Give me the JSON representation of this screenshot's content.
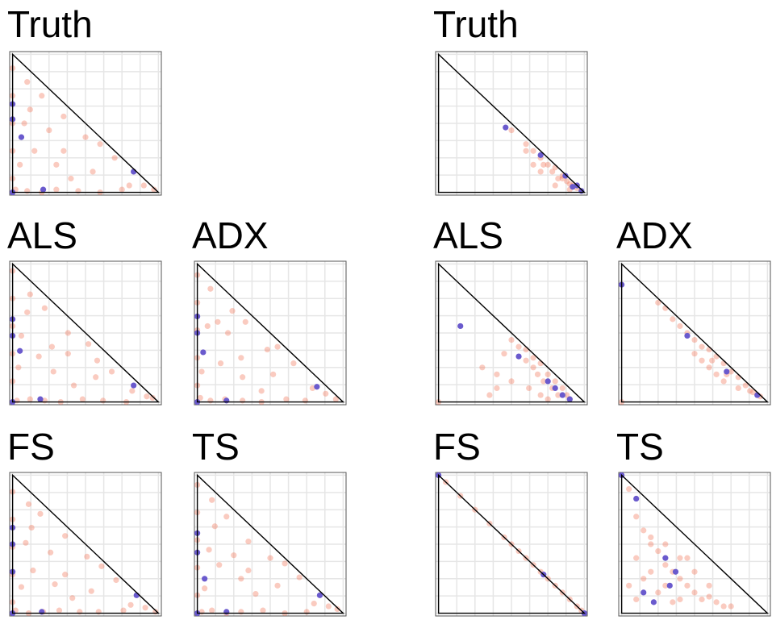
{
  "chart_data": [
    {
      "type": "scatter",
      "title": "Truth",
      "xlim": [
        -0.02,
        1.02
      ],
      "ylim": [
        -0.02,
        1.02
      ],
      "xticks": [
        0,
        0.125,
        0.25,
        0.375,
        0.5,
        0.625,
        0.75,
        0.875,
        1
      ],
      "yticks": [
        0,
        0.125,
        0.25,
        0.375,
        0.5,
        0.625,
        0.75,
        0.875,
        1
      ],
      "grid": true,
      "series": [
        {
          "color": "#f26b4a",
          "opacity": 0.35,
          "x": [
            0,
            0,
            0,
            0,
            0,
            0.02,
            0.1,
            0.2,
            0.3,
            0.45,
            0.6,
            0.75,
            0.9,
            0.97,
            0.1,
            0.2,
            0.35,
            0.5,
            0.15,
            0.3,
            0.08,
            0.25,
            0.55,
            0.4,
            0.7,
            0.05,
            0.8,
            0.12,
            0.6,
            0.35
          ],
          "y": [
            0.1,
            0.3,
            0.5,
            0.7,
            0.9,
            0.02,
            0.01,
            0,
            0.02,
            0.01,
            0,
            0.02,
            0.05,
            0.02,
            0.8,
            0.7,
            0.55,
            0.4,
            0.3,
            0.2,
            0.5,
            0.45,
            0.15,
            0.1,
            0.25,
            0.2,
            0.05,
            0.6,
            0.35,
            0.3
          ]
        },
        {
          "color": "#6a5acd",
          "opacity": 1,
          "x": [
            0,
            0,
            0.06,
            0.83,
            0.21,
            0
          ],
          "y": [
            0.64,
            0.53,
            0.4,
            0.15,
            0.02,
            0
          ]
        }
      ]
    },
    {
      "type": "scatter",
      "title": "ALS",
      "xlim": [
        -0.02,
        1.02
      ],
      "ylim": [
        -0.02,
        1.02
      ],
      "xticks": [
        0,
        0.125,
        0.25,
        0.375,
        0.5,
        0.625,
        0.75,
        0.875,
        1
      ],
      "yticks": [
        0,
        0.125,
        0.25,
        0.375,
        0.5,
        0.625,
        0.75,
        0.875,
        1
      ],
      "grid": true,
      "series": [
        {
          "color": "#f26b4a",
          "opacity": 0.35,
          "x": [
            0,
            0,
            0,
            0,
            0,
            0.03,
            0.12,
            0.22,
            0.33,
            0.48,
            0.62,
            0.78,
            0.92,
            0.96,
            0.12,
            0.22,
            0.38,
            0.52,
            0.18,
            0.28,
            0.06,
            0.27,
            0.57,
            0.42,
            0.68,
            0.04,
            0.82,
            0.1,
            0.58,
            0.38
          ],
          "y": [
            0.15,
            0.35,
            0.55,
            0.75,
            0.95,
            0.01,
            0.02,
            0.01,
            0,
            0.02,
            0.01,
            0,
            0.04,
            0.03,
            0.78,
            0.68,
            0.5,
            0.42,
            0.33,
            0.22,
            0.48,
            0.4,
            0.18,
            0.12,
            0.22,
            0.25,
            0.08,
            0.65,
            0.3,
            0.35
          ]
        },
        {
          "color": "#6a5acd",
          "opacity": 1,
          "x": [
            0,
            0,
            0.05,
            0.83,
            0.19,
            0
          ],
          "y": [
            0.6,
            0.48,
            0.37,
            0.12,
            0.02,
            0
          ]
        }
      ]
    },
    {
      "type": "scatter",
      "title": "ADX",
      "xlim": [
        -0.02,
        1.02
      ],
      "ylim": [
        -0.02,
        1.02
      ],
      "xticks": [
        0,
        0.125,
        0.25,
        0.375,
        0.5,
        0.625,
        0.75,
        0.875,
        1
      ],
      "yticks": [
        0,
        0.125,
        0.25,
        0.375,
        0.5,
        0.625,
        0.75,
        0.875,
        1
      ],
      "grid": true,
      "series": [
        {
          "color": "#f26b4a",
          "opacity": 0.35,
          "x": [
            0,
            0,
            0,
            0,
            0,
            0.02,
            0.09,
            0.19,
            0.31,
            0.44,
            0.61,
            0.74,
            0.88,
            0.95,
            0.09,
            0.24,
            0.33,
            0.48,
            0.16,
            0.31,
            0.07,
            0.21,
            0.52,
            0.44,
            0.66,
            0.03,
            0.79,
            0.14,
            0.55,
            0.3
          ],
          "y": [
            0.12,
            0.32,
            0.52,
            0.72,
            0.92,
            0.03,
            0.01,
            0.02,
            0.01,
            0,
            0.02,
            0.01,
            0.06,
            0.02,
            0.82,
            0.66,
            0.58,
            0.38,
            0.28,
            0.18,
            0.55,
            0.5,
            0.2,
            0.08,
            0.28,
            0.22,
            0.1,
            0.58,
            0.4,
            0.32
          ]
        },
        {
          "color": "#6a5acd",
          "opacity": 1,
          "x": [
            0,
            0,
            0.04,
            0.82,
            0.2,
            0
          ],
          "y": [
            0.62,
            0.5,
            0.36,
            0.11,
            0.01,
            0
          ]
        }
      ]
    },
    {
      "type": "scatter",
      "title": "FS",
      "xlim": [
        -0.02,
        1.02
      ],
      "ylim": [
        -0.02,
        1.02
      ],
      "xticks": [
        0,
        0.125,
        0.25,
        0.375,
        0.5,
        0.625,
        0.75,
        0.875,
        1
      ],
      "yticks": [
        0,
        0.125,
        0.25,
        0.375,
        0.5,
        0.625,
        0.75,
        0.875,
        1
      ],
      "grid": true,
      "series": [
        {
          "color": "#f26b4a",
          "opacity": 0.35,
          "x": [
            0,
            0,
            0,
            0,
            0,
            0.02,
            0.11,
            0.21,
            0.32,
            0.46,
            0.59,
            0.76,
            0.91,
            0.98,
            0.11,
            0.19,
            0.36,
            0.51,
            0.14,
            0.29,
            0.09,
            0.26,
            0.54,
            0.41,
            0.71,
            0.06,
            0.81,
            0.13,
            0.61,
            0.36
          ],
          "y": [
            0.08,
            0.28,
            0.48,
            0.68,
            0.88,
            0.02,
            0,
            0.01,
            0.02,
            0.01,
            0.01,
            0.02,
            0.04,
            0.01,
            0.79,
            0.72,
            0.56,
            0.41,
            0.31,
            0.21,
            0.51,
            0.44,
            0.16,
            0.11,
            0.24,
            0.19,
            0.06,
            0.62,
            0.34,
            0.28
          ]
        },
        {
          "color": "#6a5acd",
          "opacity": 1,
          "x": [
            0,
            0,
            0,
            0.85,
            0.2,
            0
          ],
          "y": [
            0.62,
            0.5,
            0.3,
            0.13,
            0.01,
            0
          ]
        }
      ]
    },
    {
      "type": "scatter",
      "title": "TS",
      "xlim": [
        -0.02,
        1.02
      ],
      "ylim": [
        -0.02,
        1.02
      ],
      "xticks": [
        0,
        0.125,
        0.25,
        0.375,
        0.5,
        0.625,
        0.75,
        0.875,
        1
      ],
      "yticks": [
        0,
        0.125,
        0.25,
        0.375,
        0.5,
        0.625,
        0.75,
        0.875,
        1
      ],
      "grid": true,
      "series": [
        {
          "color": "#f26b4a",
          "opacity": 0.35,
          "x": [
            0,
            0,
            0,
            0,
            0,
            0.03,
            0.1,
            0.2,
            0.3,
            0.45,
            0.6,
            0.75,
            0.9,
            0.96,
            0.1,
            0.2,
            0.35,
            0.5,
            0.15,
            0.3,
            0.08,
            0.25,
            0.55,
            0.4,
            0.7,
            0.05,
            0.8,
            0.12,
            0.6,
            0.35
          ],
          "y": [
            0.13,
            0.33,
            0.53,
            0.73,
            0.93,
            0.01,
            0.02,
            0,
            0.01,
            0.02,
            0,
            0.01,
            0.05,
            0.03,
            0.82,
            0.7,
            0.52,
            0.4,
            0.35,
            0.25,
            0.46,
            0.42,
            0.2,
            0.14,
            0.26,
            0.18,
            0.07,
            0.63,
            0.36,
            0.31
          ]
        },
        {
          "color": "#6a5acd",
          "opacity": 1,
          "x": [
            0,
            0,
            0.05,
            0.84,
            0.2,
            0
          ],
          "y": [
            0.58,
            0.44,
            0.25,
            0.13,
            0.01,
            0
          ]
        }
      ]
    },
    {
      "type": "scatter",
      "title": "Truth",
      "xlim": [
        -0.02,
        1.02
      ],
      "ylim": [
        -0.02,
        1.02
      ],
      "xticks": [
        0,
        0.125,
        0.25,
        0.375,
        0.5,
        0.625,
        0.75,
        0.875,
        1
      ],
      "yticks": [
        0,
        0.125,
        0.25,
        0.375,
        0.5,
        0.625,
        0.75,
        0.875,
        1
      ],
      "grid": true,
      "series": [
        {
          "color": "#f26b4a",
          "opacity": 0.35,
          "x": [
            0.5,
            0.6,
            0.65,
            0.7,
            0.72,
            0.75,
            0.78,
            0.8,
            0.82,
            0.85,
            0.88,
            0.9,
            0.92,
            0.95,
            0.6,
            0.7,
            0.8,
            0.85,
            0.9,
            0.65
          ],
          "y": [
            0.45,
            0.35,
            0.3,
            0.25,
            0.2,
            0.2,
            0.15,
            0.18,
            0.1,
            0.12,
            0.08,
            0.06,
            0.05,
            0.03,
            0.3,
            0.15,
            0.05,
            0.1,
            0.02,
            0.2
          ]
        },
        {
          "color": "#6a5acd",
          "opacity": 1,
          "x": [
            0.46,
            0.7,
            0.87,
            0.95,
            0.98,
            0.92
          ],
          "y": [
            0.47,
            0.27,
            0.12,
            0.05,
            0.01,
            0.04
          ]
        }
      ]
    },
    {
      "type": "scatter",
      "title": "ALS",
      "xlim": [
        -0.02,
        1.02
      ],
      "ylim": [
        -0.02,
        1.02
      ],
      "xticks": [
        0,
        0.125,
        0.25,
        0.375,
        0.5,
        0.625,
        0.75,
        0.875,
        1
      ],
      "yticks": [
        0,
        0.125,
        0.25,
        0.375,
        0.5,
        0.625,
        0.75,
        0.875,
        1
      ],
      "grid": true,
      "series": [
        {
          "color": "#f26b4a",
          "opacity": 0.35,
          "x": [
            0.35,
            0.4,
            0.45,
            0.5,
            0.55,
            0.6,
            0.62,
            0.65,
            0.68,
            0.7,
            0.72,
            0.75,
            0.78,
            0.8,
            0.82,
            0.85,
            0.88,
            0.9,
            0.5,
            0.6,
            0.7,
            0.4,
            0.3,
            0,
            0.65,
            0.75
          ],
          "y": [
            0.05,
            0.2,
            0.35,
            0.15,
            0.4,
            0.3,
            0.1,
            0.25,
            0.2,
            0.05,
            0.15,
            0.2,
            0.1,
            0.15,
            0.05,
            0.1,
            0.05,
            0.02,
            0.45,
            0.38,
            0.28,
            0.1,
            0.25,
            0,
            0.32,
            0.02
          ]
        },
        {
          "color": "#6a5acd",
          "opacity": 1,
          "x": [
            0.15,
            0.55,
            0.75,
            0.85,
            0.9,
            0.8
          ],
          "y": [
            0.55,
            0.33,
            0.15,
            0.05,
            0.02,
            0.1
          ]
        }
      ]
    },
    {
      "type": "scatter",
      "title": "ADX",
      "xlim": [
        -0.02,
        1.02
      ],
      "ylim": [
        -0.02,
        1.02
      ],
      "xticks": [
        0,
        0.125,
        0.25,
        0.375,
        0.5,
        0.625,
        0.75,
        0.875,
        1
      ],
      "yticks": [
        0,
        0.125,
        0.25,
        0.375,
        0.5,
        0.625,
        0.75,
        0.875,
        1
      ],
      "grid": true,
      "series": [
        {
          "color": "#f26b4a",
          "opacity": 0.35,
          "x": [
            0.25,
            0.3,
            0.35,
            0.4,
            0.45,
            0.5,
            0.55,
            0.6,
            0.62,
            0.65,
            0.7,
            0.72,
            0.75,
            0.8,
            0.85,
            0.88,
            0.9,
            0.95,
            0.5,
            0.6,
            0.7,
            0.8,
            0.55,
            0.65,
            0
          ],
          "y": [
            0.72,
            0.68,
            0.6,
            0.55,
            0.5,
            0.45,
            0.4,
            0.38,
            0.3,
            0.33,
            0.28,
            0.2,
            0.22,
            0.18,
            0.12,
            0.08,
            0.07,
            0.04,
            0.35,
            0.25,
            0.15,
            0.1,
            0.3,
            0.2,
            0
          ]
        },
        {
          "color": "#6a5acd",
          "opacity": 1,
          "x": [
            0,
            0.45,
            0.72,
            0.93
          ],
          "y": [
            0.85,
            0.48,
            0.22,
            0.05
          ]
        }
      ]
    },
    {
      "type": "scatter",
      "title": "FS",
      "xlim": [
        -0.02,
        1.02
      ],
      "ylim": [
        -0.02,
        1.02
      ],
      "xticks": [
        0,
        0.125,
        0.25,
        0.375,
        0.5,
        0.625,
        0.75,
        0.875,
        1
      ],
      "yticks": [
        0,
        0.125,
        0.25,
        0.375,
        0.5,
        0.625,
        0.75,
        0.875,
        1
      ],
      "grid": true,
      "series": [
        {
          "color": "#f26b4a",
          "opacity": 0.35,
          "x": [
            0.05,
            0.15,
            0.25,
            0.35,
            0.45,
            0.5,
            0.55,
            0.6,
            0.65,
            0.7,
            0.75,
            0.8,
            0.85,
            0.9,
            0.95,
            0.98
          ],
          "y": [
            0.95,
            0.85,
            0.75,
            0.65,
            0.55,
            0.5,
            0.45,
            0.4,
            0.35,
            0.3,
            0.25,
            0.2,
            0.15,
            0.1,
            0.05,
            0.02
          ]
        },
        {
          "color": "#6a5acd",
          "opacity": 1,
          "x": [
            0,
            0.72,
            1
          ],
          "y": [
            1,
            0.28,
            0
          ]
        }
      ]
    },
    {
      "type": "scatter",
      "title": "TS",
      "xlim": [
        -0.02,
        1.02
      ],
      "ylim": [
        -0.02,
        1.02
      ],
      "xticks": [
        0,
        0.125,
        0.25,
        0.375,
        0.5,
        0.625,
        0.75,
        0.875,
        1
      ],
      "yticks": [
        0,
        0.125,
        0.25,
        0.375,
        0.5,
        0.625,
        0.75,
        0.875,
        1
      ],
      "grid": true,
      "series": [
        {
          "color": "#f26b4a",
          "opacity": 0.35,
          "x": [
            0.05,
            0.1,
            0.15,
            0.2,
            0.25,
            0.3,
            0.35,
            0.4,
            0.45,
            0.5,
            0.55,
            0.6,
            0.65,
            0.7,
            0.75,
            0.1,
            0.2,
            0.3,
            0.4,
            0.15,
            0.25,
            0.35,
            0.5,
            0.6,
            0.05,
            0.2,
            0.3,
            0.45,
            0.1,
            0.4
          ],
          "y": [
            0.9,
            0.7,
            0.6,
            0.5,
            0.45,
            0.35,
            0.3,
            0.25,
            0.2,
            0.15,
            0.1,
            0.12,
            0.08,
            0.05,
            0.05,
            0.4,
            0.3,
            0.2,
            0.1,
            0.25,
            0.15,
            0.08,
            0.3,
            0.2,
            0.2,
            0.55,
            0.5,
            0.4,
            0.1,
            0.4
          ]
        },
        {
          "color": "#6a5acd",
          "opacity": 1,
          "x": [
            0,
            0.1,
            0.3,
            0.37,
            0.33,
            0.15,
            0.22
          ],
          "y": [
            1,
            0.83,
            0.4,
            0.3,
            0.2,
            0.15,
            0.08
          ]
        }
      ]
    }
  ]
}
